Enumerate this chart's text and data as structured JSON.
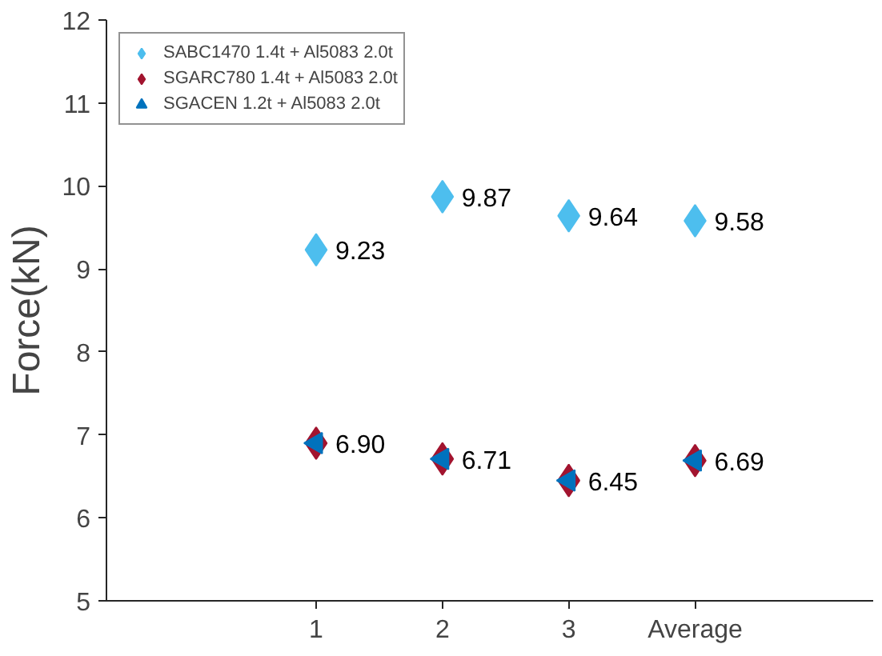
{
  "chart_data": {
    "type": "scatter",
    "ylabel": "Force(kN)",
    "categories": [
      "1",
      "2",
      "3",
      "Average"
    ],
    "ylim": [
      5,
      12
    ],
    "yticks": [
      5,
      6,
      7,
      8,
      9,
      10,
      11,
      12
    ],
    "grid": false,
    "legend": "top left",
    "series": [
      {
        "name": "SABC1470 1.4t + Al5083 2.0t",
        "color": "#4dbeee",
        "marker": "diamond",
        "values": [
          9.23,
          9.87,
          9.64,
          9.58
        ],
        "value_labels": [
          "9.23",
          "9.87",
          "9.64",
          "9.58"
        ]
      },
      {
        "name": "SGARC780 1.4t + Al5083 2.0t",
        "color": "#a2142f",
        "marker": "diamond",
        "values": [
          6.9,
          6.71,
          6.45,
          6.69
        ],
        "value_labels": [
          "6.90",
          "6.71",
          "6.45",
          "6.69"
        ]
      },
      {
        "name": "SGACEN 1.2t + Al5083 2.0t",
        "color": "#0072bd",
        "marker": "triangle_left",
        "values": [
          6.9,
          6.71,
          6.45,
          6.69
        ]
      }
    ]
  }
}
